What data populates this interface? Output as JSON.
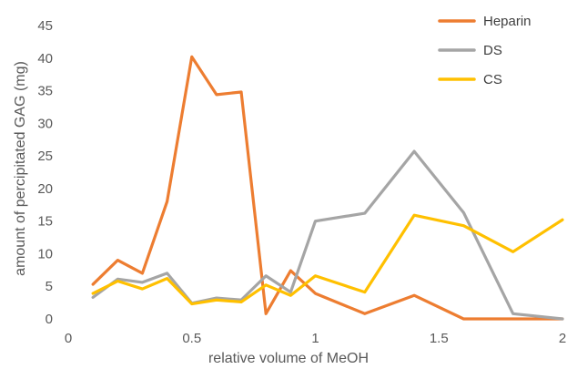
{
  "chart_data": {
    "type": "line",
    "xlabel": "relative volume of MeOH",
    "ylabel": "amount of percipitated GAG (mg)",
    "xlim": [
      0,
      2
    ],
    "ylim": [
      0,
      45
    ],
    "x_ticks": [
      "0",
      "0.5",
      "1",
      "1.5",
      "2"
    ],
    "y_ticks": [
      "0",
      "5",
      "10",
      "15",
      "20",
      "25",
      "30",
      "35",
      "40",
      "45"
    ],
    "grid": false,
    "legend_position": "top-right",
    "series": [
      {
        "name": "Heparin",
        "color": "#ed7d31",
        "x": [
          0.1,
          0.2,
          0.3,
          0.4,
          0.5,
          0.6,
          0.7,
          0.8,
          0.9,
          1.0,
          1.2,
          1.4,
          1.6,
          1.8,
          2.0
        ],
        "y": [
          5.3,
          9.0,
          7.0,
          18.0,
          40.2,
          34.4,
          34.8,
          0.8,
          7.4,
          3.9,
          0.8,
          3.6,
          0.0,
          0.0,
          0.0
        ]
      },
      {
        "name": "DS",
        "color": "#a5a5a5",
        "x": [
          0.1,
          0.2,
          0.3,
          0.4,
          0.5,
          0.6,
          0.7,
          0.8,
          0.9,
          1.0,
          1.2,
          1.4,
          1.6,
          1.8,
          2.0
        ],
        "y": [
          3.3,
          6.1,
          5.6,
          7.0,
          2.4,
          3.2,
          2.9,
          6.6,
          4.1,
          15.0,
          16.2,
          25.7,
          16.3,
          0.8,
          0.0
        ]
      },
      {
        "name": "CS",
        "color": "#ffc000",
        "x": [
          0.1,
          0.2,
          0.3,
          0.4,
          0.5,
          0.6,
          0.7,
          0.8,
          0.9,
          1.0,
          1.2,
          1.4,
          1.6,
          1.8,
          2.0
        ],
        "y": [
          3.9,
          5.8,
          4.6,
          6.2,
          2.3,
          2.9,
          2.6,
          5.2,
          3.6,
          6.6,
          4.1,
          15.9,
          14.3,
          10.3,
          15.2
        ]
      }
    ]
  }
}
